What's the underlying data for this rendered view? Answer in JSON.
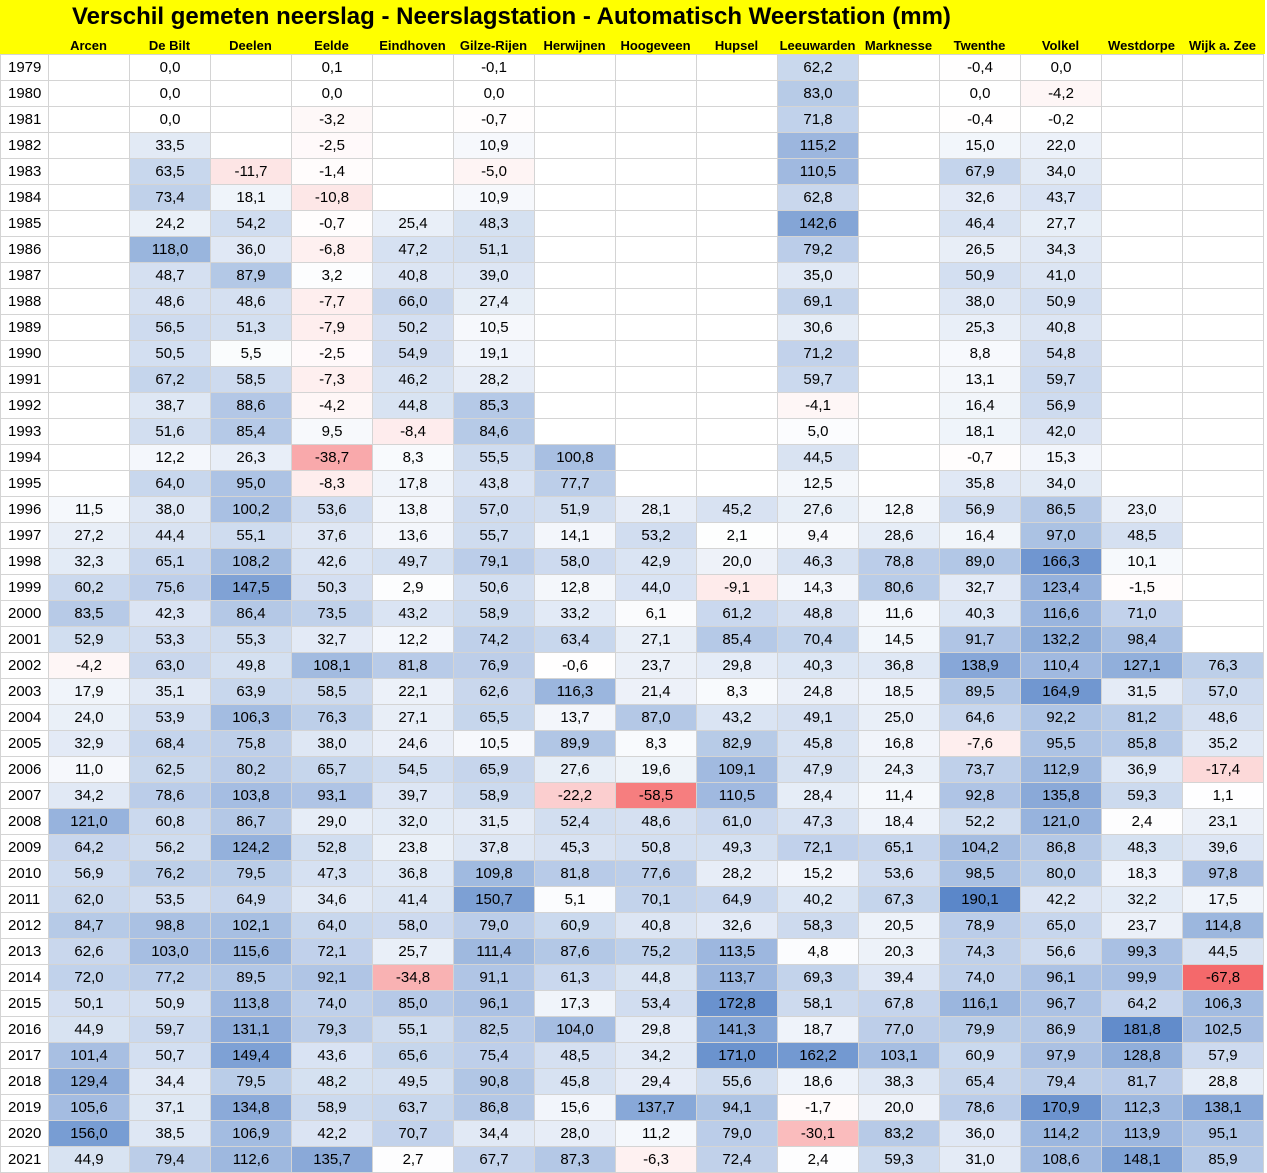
{
  "title": "Verschil gemeten neerslag - Neerslagstation - Automatisch Weerstation (mm)",
  "stations": [
    "Arcen",
    "De Bilt",
    "Deelen",
    "Eelde",
    "Eindhoven",
    "Gilze-Rijen",
    "Herwijnen",
    "Hoogeveen",
    "Hupsel",
    "Leeuwarden",
    "Marknesse",
    "Twenthe",
    "Volkel",
    "Westdorpe",
    "Wijk a. Zee"
  ],
  "rows": [
    {
      "year": "1979",
      "values": [
        "",
        "0,0",
        "",
        "0,1",
        "",
        "-0,1",
        "",
        "",
        "",
        "62,2",
        "",
        "-0,4",
        "0,0",
        "",
        ""
      ]
    },
    {
      "year": "1980",
      "values": [
        "",
        "0,0",
        "",
        "0,0",
        "",
        "0,0",
        "",
        "",
        "",
        "83,0",
        "",
        "0,0",
        "-4,2",
        "",
        ""
      ]
    },
    {
      "year": "1981",
      "values": [
        "",
        "0,0",
        "",
        "-3,2",
        "",
        "-0,7",
        "",
        "",
        "",
        "71,8",
        "",
        "-0,4",
        "-0,2",
        "",
        ""
      ]
    },
    {
      "year": "1982",
      "values": [
        "",
        "33,5",
        "",
        "-2,5",
        "",
        "10,9",
        "",
        "",
        "",
        "115,2",
        "",
        "15,0",
        "22,0",
        "",
        ""
      ]
    },
    {
      "year": "1983",
      "values": [
        "",
        "63,5",
        "-11,7",
        "-1,4",
        "",
        "-5,0",
        "",
        "",
        "",
        "110,5",
        "",
        "67,9",
        "34,0",
        "",
        ""
      ]
    },
    {
      "year": "1984",
      "values": [
        "",
        "73,4",
        "18,1",
        "-10,8",
        "",
        "10,9",
        "",
        "",
        "",
        "62,8",
        "",
        "32,6",
        "43,7",
        "",
        ""
      ]
    },
    {
      "year": "1985",
      "values": [
        "",
        "24,2",
        "54,2",
        "-0,7",
        "25,4",
        "48,3",
        "",
        "",
        "",
        "142,6",
        "",
        "46,4",
        "27,7",
        "",
        ""
      ]
    },
    {
      "year": "1986",
      "values": [
        "",
        "118,0",
        "36,0",
        "-6,8",
        "47,2",
        "51,1",
        "",
        "",
        "",
        "79,2",
        "",
        "26,5",
        "34,3",
        "",
        ""
      ]
    },
    {
      "year": "1987",
      "values": [
        "",
        "48,7",
        "87,9",
        "3,2",
        "40,8",
        "39,0",
        "",
        "",
        "",
        "35,0",
        "",
        "50,9",
        "41,0",
        "",
        ""
      ]
    },
    {
      "year": "1988",
      "values": [
        "",
        "48,6",
        "48,6",
        "-7,7",
        "66,0",
        "27,4",
        "",
        "",
        "",
        "69,1",
        "",
        "38,0",
        "50,9",
        "",
        ""
      ]
    },
    {
      "year": "1989",
      "values": [
        "",
        "56,5",
        "51,3",
        "-7,9",
        "50,2",
        "10,5",
        "",
        "",
        "",
        "30,6",
        "",
        "25,3",
        "40,8",
        "",
        ""
      ]
    },
    {
      "year": "1990",
      "values": [
        "",
        "50,5",
        "5,5",
        "-2,5",
        "54,9",
        "19,1",
        "",
        "",
        "",
        "71,2",
        "",
        "8,8",
        "54,8",
        "",
        ""
      ]
    },
    {
      "year": "1991",
      "values": [
        "",
        "67,2",
        "58,5",
        "-7,3",
        "46,2",
        "28,2",
        "",
        "",
        "",
        "59,7",
        "",
        "13,1",
        "59,7",
        "",
        ""
      ]
    },
    {
      "year": "1992",
      "values": [
        "",
        "38,7",
        "88,6",
        "-4,2",
        "44,8",
        "85,3",
        "",
        "",
        "",
        "-4,1",
        "",
        "16,4",
        "56,9",
        "",
        ""
      ]
    },
    {
      "year": "1993",
      "values": [
        "",
        "51,6",
        "85,4",
        "9,5",
        "-8,4",
        "84,6",
        "",
        "",
        "",
        "5,0",
        "",
        "18,1",
        "42,0",
        "",
        ""
      ]
    },
    {
      "year": "1994",
      "values": [
        "",
        "12,2",
        "26,3",
        "-38,7",
        "8,3",
        "55,5",
        "100,8",
        "",
        "",
        "44,5",
        "",
        "-0,7",
        "15,3",
        "",
        ""
      ]
    },
    {
      "year": "1995",
      "values": [
        "",
        "64,0",
        "95,0",
        "-8,3",
        "17,8",
        "43,8",
        "77,7",
        "",
        "",
        "12,5",
        "",
        "35,8",
        "34,0",
        "",
        ""
      ]
    },
    {
      "year": "1996",
      "values": [
        "11,5",
        "38,0",
        "100,2",
        "53,6",
        "13,8",
        "57,0",
        "51,9",
        "28,1",
        "45,2",
        "27,6",
        "12,8",
        "56,9",
        "86,5",
        "23,0",
        ""
      ]
    },
    {
      "year": "1997",
      "values": [
        "27,2",
        "44,4",
        "55,1",
        "37,6",
        "13,6",
        "55,7",
        "14,1",
        "53,2",
        "2,1",
        "9,4",
        "28,6",
        "16,4",
        "97,0",
        "48,5",
        ""
      ]
    },
    {
      "year": "1998",
      "values": [
        "32,3",
        "65,1",
        "108,2",
        "42,6",
        "49,7",
        "79,1",
        "58,0",
        "42,9",
        "20,0",
        "46,3",
        "78,8",
        "89,0",
        "166,3",
        "10,1",
        ""
      ]
    },
    {
      "year": "1999",
      "values": [
        "60,2",
        "75,6",
        "147,5",
        "50,3",
        "2,9",
        "50,6",
        "12,8",
        "44,0",
        "-9,1",
        "14,3",
        "80,6",
        "32,7",
        "123,4",
        "-1,5",
        ""
      ]
    },
    {
      "year": "2000",
      "values": [
        "83,5",
        "42,3",
        "86,4",
        "73,5",
        "43,2",
        "58,9",
        "33,2",
        "6,1",
        "61,2",
        "48,8",
        "11,6",
        "40,3",
        "116,6",
        "71,0",
        ""
      ]
    },
    {
      "year": "2001",
      "values": [
        "52,9",
        "53,3",
        "55,3",
        "32,7",
        "12,2",
        "74,2",
        "63,4",
        "27,1",
        "85,4",
        "70,4",
        "14,5",
        "91,7",
        "132,2",
        "98,4",
        ""
      ]
    },
    {
      "year": "2002",
      "values": [
        "-4,2",
        "63,0",
        "49,8",
        "108,1",
        "81,8",
        "76,9",
        "-0,6",
        "23,7",
        "29,8",
        "40,3",
        "36,8",
        "138,9",
        "110,4",
        "127,1",
        "76,3"
      ]
    },
    {
      "year": "2003",
      "values": [
        "17,9",
        "35,1",
        "63,9",
        "58,5",
        "22,1",
        "62,6",
        "116,3",
        "21,4",
        "8,3",
        "24,8",
        "18,5",
        "89,5",
        "164,9",
        "31,5",
        "57,0"
      ]
    },
    {
      "year": "2004",
      "values": [
        "24,0",
        "53,9",
        "106,3",
        "76,3",
        "27,1",
        "65,5",
        "13,7",
        "87,0",
        "43,2",
        "49,1",
        "25,0",
        "64,6",
        "92,2",
        "81,2",
        "48,6"
      ]
    },
    {
      "year": "2005",
      "values": [
        "32,9",
        "68,4",
        "75,8",
        "38,0",
        "24,6",
        "10,5",
        "89,9",
        "8,3",
        "82,9",
        "45,8",
        "16,8",
        "-7,6",
        "95,5",
        "85,8",
        "35,2"
      ]
    },
    {
      "year": "2006",
      "values": [
        "11,0",
        "62,5",
        "80,2",
        "65,7",
        "54,5",
        "65,9",
        "27,6",
        "19,6",
        "109,1",
        "47,9",
        "24,3",
        "73,7",
        "112,9",
        "36,9",
        "-17,4"
      ]
    },
    {
      "year": "2007",
      "values": [
        "34,2",
        "78,6",
        "103,8",
        "93,1",
        "39,7",
        "58,9",
        "-22,2",
        "-58,5",
        "110,5",
        "28,4",
        "11,4",
        "92,8",
        "135,8",
        "59,3",
        "1,1"
      ]
    },
    {
      "year": "2008",
      "values": [
        "121,0",
        "60,8",
        "86,7",
        "29,0",
        "32,0",
        "31,5",
        "52,4",
        "48,6",
        "61,0",
        "47,3",
        "18,4",
        "52,2",
        "121,0",
        "2,4",
        "23,1"
      ]
    },
    {
      "year": "2009",
      "values": [
        "64,2",
        "56,2",
        "124,2",
        "52,8",
        "23,8",
        "37,8",
        "45,3",
        "50,8",
        "49,3",
        "72,1",
        "65,1",
        "104,2",
        "86,8",
        "48,3",
        "39,6"
      ]
    },
    {
      "year": "2010",
      "values": [
        "56,9",
        "76,2",
        "79,5",
        "47,3",
        "36,8",
        "109,8",
        "81,8",
        "77,6",
        "28,2",
        "15,2",
        "53,6",
        "98,5",
        "80,0",
        "18,3",
        "97,8"
      ]
    },
    {
      "year": "2011",
      "values": [
        "62,0",
        "53,5",
        "64,9",
        "34,6",
        "41,4",
        "150,7",
        "5,1",
        "70,1",
        "64,9",
        "40,2",
        "67,3",
        "190,1",
        "42,2",
        "32,2",
        "17,5"
      ]
    },
    {
      "year": "2012",
      "values": [
        "84,7",
        "98,8",
        "102,1",
        "64,0",
        "58,0",
        "79,0",
        "60,9",
        "40,8",
        "32,6",
        "58,3",
        "20,5",
        "78,9",
        "65,0",
        "23,7",
        "114,8"
      ]
    },
    {
      "year": "2013",
      "values": [
        "62,6",
        "103,0",
        "115,6",
        "72,1",
        "25,7",
        "111,4",
        "87,6",
        "75,2",
        "113,5",
        "4,8",
        "20,3",
        "74,3",
        "56,6",
        "99,3",
        "44,5"
      ]
    },
    {
      "year": "2014",
      "values": [
        "72,0",
        "77,2",
        "89,5",
        "92,1",
        "-34,8",
        "91,1",
        "61,3",
        "44,8",
        "113,7",
        "69,3",
        "39,4",
        "74,0",
        "96,1",
        "99,9",
        "-67,8"
      ]
    },
    {
      "year": "2015",
      "values": [
        "50,1",
        "50,9",
        "113,8",
        "74,0",
        "85,0",
        "96,1",
        "17,3",
        "53,4",
        "172,8",
        "58,1",
        "67,8",
        "116,1",
        "96,7",
        "64,2",
        "106,3"
      ]
    },
    {
      "year": "2016",
      "values": [
        "44,9",
        "59,7",
        "131,1",
        "79,3",
        "55,1",
        "82,5",
        "104,0",
        "29,8",
        "141,3",
        "18,7",
        "77,0",
        "79,9",
        "86,9",
        "181,8",
        "102,5"
      ]
    },
    {
      "year": "2017",
      "values": [
        "101,4",
        "50,7",
        "149,4",
        "43,6",
        "65,6",
        "75,4",
        "48,5",
        "34,2",
        "171,0",
        "162,2",
        "103,1",
        "60,9",
        "97,9",
        "128,8",
        "57,9"
      ]
    },
    {
      "year": "2018",
      "values": [
        "129,4",
        "34,4",
        "79,5",
        "48,2",
        "49,5",
        "90,8",
        "45,8",
        "29,4",
        "55,6",
        "18,6",
        "38,3",
        "65,4",
        "79,4",
        "81,7",
        "28,8"
      ]
    },
    {
      "year": "2019",
      "values": [
        "105,6",
        "37,1",
        "134,8",
        "58,9",
        "63,7",
        "86,8",
        "15,6",
        "137,7",
        "94,1",
        "-1,7",
        "20,0",
        "78,6",
        "170,9",
        "112,3",
        "138,1"
      ]
    },
    {
      "year": "2020",
      "values": [
        "156,0",
        "38,5",
        "106,9",
        "42,2",
        "70,7",
        "34,4",
        "28,0",
        "11,2",
        "79,0",
        "-30,1",
        "83,2",
        "36,0",
        "114,2",
        "113,9",
        "95,1"
      ]
    },
    {
      "year": "2021",
      "values": [
        "44,9",
        "79,4",
        "112,6",
        "135,7",
        "2,7",
        "67,7",
        "87,3",
        "-6,3",
        "72,4",
        "2,4",
        "59,3",
        "31,0",
        "108,6",
        "148,1",
        "85,9"
      ]
    }
  ],
  "colors": {
    "title_background": "#ffff00",
    "positive_max": "#5b87c9",
    "negative_max": "#f4696b",
    "neutral": "#ffffff",
    "gridline": "#d4d4d4"
  }
}
